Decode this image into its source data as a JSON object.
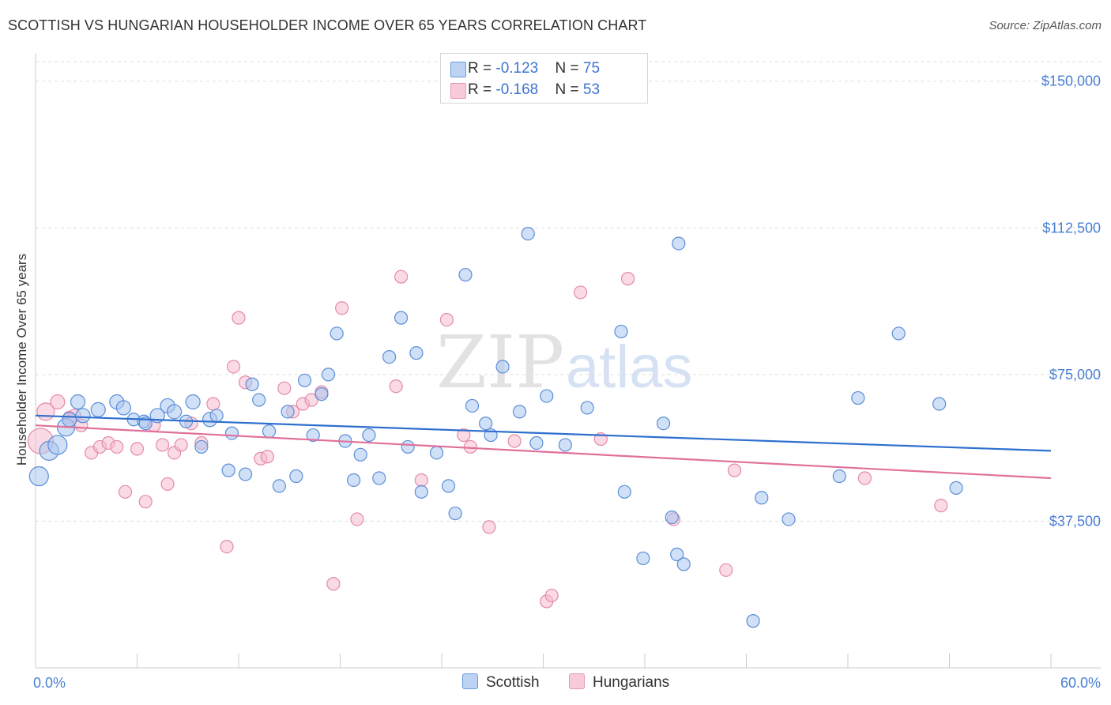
{
  "title": "SCOTTISH VS HUNGARIAN HOUSEHOLDER INCOME OVER 65 YEARS CORRELATION CHART",
  "source": "Source: ZipAtlas.com",
  "watermark": {
    "zip": "ZIP",
    "atlas": "atlas"
  },
  "colors": {
    "scottish_fill": "#a9c6ee",
    "scottish_stroke": "#5b8ed8",
    "scottish_line": "#2e6fce",
    "hungarian_fill": "#f4bcd0",
    "hungarian_stroke": "#e58aaa",
    "hungarian_line": "#e0709a",
    "tick_text": "#4a7fd4",
    "grid": "#dddddd"
  },
  "legend_top": [
    {
      "r_label": "R = ",
      "r_value": "-0.123",
      "n_label": "N = ",
      "n_value": "75"
    },
    {
      "r_label": "R = ",
      "r_value": "-0.168",
      "n_label": "N = ",
      "n_value": "53"
    }
  ],
  "legend_bottom": [
    "Scottish",
    "Hungarians"
  ],
  "chart_data": {
    "type": "scatter",
    "title": "SCOTTISH VS HUNGARIAN HOUSEHOLDER INCOME OVER 65 YEARS CORRELATION CHART",
    "xlabel": "",
    "ylabel": "Householder Income Over 65 years",
    "xlim": [
      0,
      60
    ],
    "ylim": [
      0,
      155000
    ],
    "x_tick_labels": [
      "0.0%",
      "60.0%"
    ],
    "y_ticks": [
      37500,
      75000,
      112500,
      150000
    ],
    "y_tick_labels": [
      "$37,500",
      "$75,000",
      "$112,500",
      "$150,000"
    ],
    "grid": "horizontal dashed",
    "series": [
      {
        "name": "Scottish",
        "trend": [
          [
            0,
            64500
          ],
          [
            60,
            55500
          ]
        ],
        "points": [
          [
            0.2,
            49000,
            12
          ],
          [
            0.8,
            55500,
            12
          ],
          [
            1.3,
            57000,
            12
          ],
          [
            1.8,
            61500,
            11
          ],
          [
            2.0,
            63500,
            9
          ],
          [
            2.5,
            68000,
            9
          ],
          [
            2.8,
            64500,
            9
          ],
          [
            3.7,
            66000,
            9
          ],
          [
            4.8,
            68000,
            9
          ],
          [
            5.2,
            66500,
            9
          ],
          [
            5.8,
            63500,
            8
          ],
          [
            6.4,
            63000,
            8
          ],
          [
            6.5,
            62500,
            8
          ],
          [
            7.2,
            64500,
            9
          ],
          [
            7.8,
            67000,
            9
          ],
          [
            8.2,
            65500,
            9
          ],
          [
            8.9,
            63000,
            8
          ],
          [
            9.3,
            68000,
            9
          ],
          [
            9.8,
            56500,
            8
          ],
          [
            10.3,
            63500,
            9
          ],
          [
            10.7,
            64500,
            8
          ],
          [
            11.4,
            50500,
            8
          ],
          [
            11.6,
            60000,
            8
          ],
          [
            12.4,
            49500,
            8
          ],
          [
            12.8,
            72500,
            8
          ],
          [
            13.2,
            68500,
            8
          ],
          [
            13.8,
            60500,
            8
          ],
          [
            14.4,
            46500,
            8
          ],
          [
            14.9,
            65500,
            8
          ],
          [
            15.4,
            49000,
            8
          ],
          [
            15.9,
            73500,
            8
          ],
          [
            16.4,
            59500,
            8
          ],
          [
            16.9,
            70000,
            8
          ],
          [
            17.3,
            75000,
            8
          ],
          [
            17.8,
            85500,
            8
          ],
          [
            18.3,
            58000,
            8
          ],
          [
            18.8,
            48000,
            8
          ],
          [
            19.2,
            54500,
            8
          ],
          [
            19.7,
            59500,
            8
          ],
          [
            20.3,
            48500,
            8
          ],
          [
            20.9,
            79500,
            8
          ],
          [
            21.6,
            89500,
            8
          ],
          [
            22.0,
            56500,
            8
          ],
          [
            22.5,
            80500,
            8
          ],
          [
            22.8,
            45000,
            8
          ],
          [
            23.7,
            55000,
            8
          ],
          [
            24.4,
            46500,
            8
          ],
          [
            24.8,
            39500,
            8
          ],
          [
            25.4,
            100500,
            8
          ],
          [
            25.8,
            67000,
            8
          ],
          [
            26.6,
            62500,
            8
          ],
          [
            26.9,
            59500,
            8
          ],
          [
            27.6,
            77000,
            8
          ],
          [
            28.6,
            65500,
            8
          ],
          [
            29.1,
            111000,
            8
          ],
          [
            29.6,
            57500,
            8
          ],
          [
            30.2,
            69500,
            8
          ],
          [
            31.3,
            57000,
            8
          ],
          [
            32.6,
            66500,
            8
          ],
          [
            34.6,
            86000,
            8
          ],
          [
            34.8,
            45000,
            8
          ],
          [
            35.9,
            28000,
            8
          ],
          [
            37.1,
            62500,
            8
          ],
          [
            37.6,
            38500,
            8
          ],
          [
            37.9,
            29000,
            8
          ],
          [
            38.0,
            108500,
            8
          ],
          [
            38.3,
            26500,
            8
          ],
          [
            42.4,
            12000,
            8
          ],
          [
            42.9,
            43500,
            8
          ],
          [
            44.5,
            38000,
            8
          ],
          [
            47.5,
            49000,
            8
          ],
          [
            48.6,
            69000,
            8
          ],
          [
            51.0,
            85500,
            8
          ],
          [
            53.4,
            67500,
            8
          ],
          [
            54.4,
            46000,
            8
          ]
        ]
      },
      {
        "name": "Hungarians",
        "trend": [
          [
            0,
            62000
          ],
          [
            60,
            48500
          ]
        ],
        "points": [
          [
            0.3,
            58000,
            16
          ],
          [
            0.6,
            65500,
            11
          ],
          [
            1.3,
            68000,
            9
          ],
          [
            2.0,
            64000,
            8
          ],
          [
            2.3,
            64500,
            8
          ],
          [
            2.7,
            62000,
            8
          ],
          [
            3.3,
            55000,
            8
          ],
          [
            3.8,
            56500,
            8
          ],
          [
            4.3,
            57500,
            8
          ],
          [
            4.8,
            56500,
            8
          ],
          [
            5.3,
            45000,
            8
          ],
          [
            6.0,
            56000,
            8
          ],
          [
            6.5,
            42500,
            8
          ],
          [
            7.0,
            62000,
            8
          ],
          [
            7.5,
            57000,
            8
          ],
          [
            7.8,
            47000,
            8
          ],
          [
            8.2,
            55000,
            8
          ],
          [
            8.6,
            57000,
            8
          ],
          [
            9.2,
            62500,
            8
          ],
          [
            9.8,
            57500,
            8
          ],
          [
            10.5,
            67500,
            8
          ],
          [
            11.3,
            31000,
            8
          ],
          [
            11.7,
            77000,
            8
          ],
          [
            12.0,
            89500,
            8
          ],
          [
            12.4,
            73000,
            8
          ],
          [
            13.3,
            53500,
            8
          ],
          [
            13.7,
            54000,
            8
          ],
          [
            14.7,
            71500,
            8
          ],
          [
            15.2,
            65500,
            8
          ],
          [
            15.8,
            67500,
            8
          ],
          [
            16.3,
            68500,
            8
          ],
          [
            16.9,
            70500,
            8
          ],
          [
            17.6,
            21500,
            8
          ],
          [
            18.1,
            92000,
            8
          ],
          [
            19.0,
            38000,
            8
          ],
          [
            21.3,
            72000,
            8
          ],
          [
            21.6,
            100000,
            8
          ],
          [
            22.8,
            48000,
            8
          ],
          [
            24.3,
            89000,
            8
          ],
          [
            25.3,
            59500,
            8
          ],
          [
            25.7,
            56500,
            8
          ],
          [
            26.8,
            36000,
            8
          ],
          [
            28.3,
            58000,
            8
          ],
          [
            30.2,
            17000,
            8
          ],
          [
            30.5,
            18500,
            8
          ],
          [
            32.2,
            96000,
            8
          ],
          [
            33.4,
            58500,
            8
          ],
          [
            35.0,
            99500,
            8
          ],
          [
            37.7,
            38000,
            8
          ],
          [
            40.8,
            25000,
            8
          ],
          [
            41.3,
            50500,
            8
          ],
          [
            49.0,
            48500,
            8
          ],
          [
            53.5,
            41500,
            8
          ]
        ]
      }
    ]
  }
}
